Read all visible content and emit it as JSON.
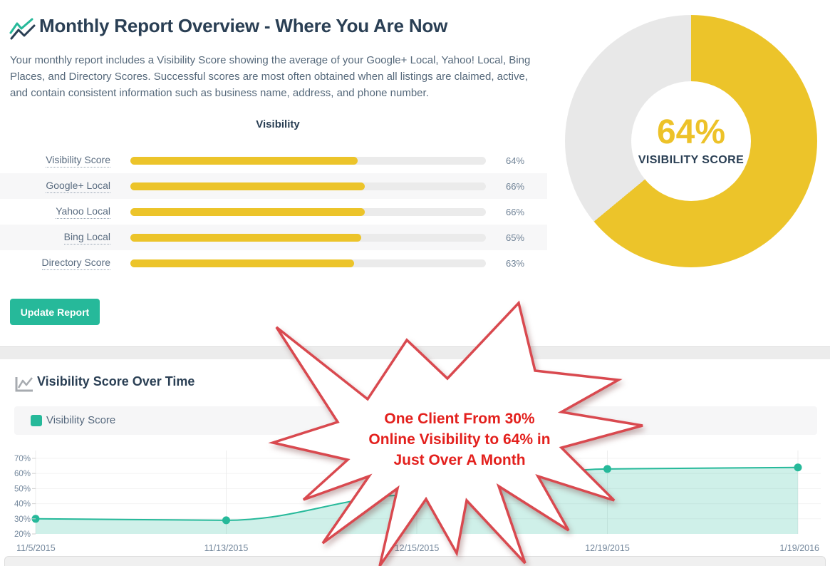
{
  "header": {
    "title": "Monthly Report Overview - Where You Are Now",
    "description": "Your monthly report includes a Visibility Score showing the average of your Google+ Local, Yahoo! Local, Bing Places, and Directory Scores. Successful scores are most often obtained when all listings are claimed, active, and contain consistent information such as business name, address, and phone number."
  },
  "update_button": {
    "label": "Update Report"
  },
  "annotation": {
    "line1": "One Client From 30%",
    "line2": "Online Visibility to 64% in",
    "line3": "Just Over A Month"
  },
  "colors": {
    "accent_teal": "#26B99A",
    "accent_yellow": "#ECC42A",
    "heading_navy": "#2A3F54",
    "body_text": "#56697B",
    "bar_track": "#EBEBEB",
    "row_stripe": "#F7F7F8",
    "donut_rest": "#E8E8E8",
    "area_fill": "rgba(38,185,154,0.22)",
    "star_border_red": "#D9494F",
    "star_text_red": "#E3201D"
  },
  "chart_data": [
    {
      "type": "bar",
      "orientation": "horizontal",
      "title": "Visibility",
      "categories": [
        "Visibility Score",
        "Google+ Local",
        "Yahoo Local",
        "Bing Local",
        "Directory Score"
      ],
      "values": [
        64,
        66,
        66,
        65,
        63
      ],
      "value_labels": [
        "64%",
        "66%",
        "66%",
        "65%",
        "63%"
      ],
      "xlim": [
        0,
        100
      ],
      "bar_color": "#ECC42A"
    },
    {
      "type": "pie",
      "subtype": "donut",
      "center_value": "64%",
      "center_label": "VISIBILITY SCORE",
      "slices": [
        {
          "name": "Visibility Score",
          "value": 64,
          "color": "#ECC42A"
        },
        {
          "name": "Remainder",
          "value": 36,
          "color": "#E8E8E8"
        }
      ]
    },
    {
      "type": "area",
      "title": "Visibility Score Over Time",
      "legend": [
        "Visibility Score"
      ],
      "x": [
        "11/5/2015",
        "11/13/2015",
        "12/15/2015",
        "12/19/2015",
        "1/19/2016"
      ],
      "values": [
        30,
        29,
        46,
        63,
        64
      ],
      "ylim": [
        20,
        70
      ],
      "yticks": [
        70,
        60,
        50,
        40,
        30,
        20
      ],
      "grid": true,
      "line_color": "#26B99A",
      "fill_color": "rgba(38,185,154,0.22)"
    }
  ]
}
